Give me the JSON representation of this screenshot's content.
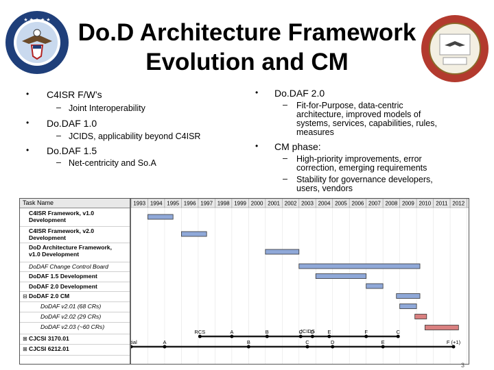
{
  "title": {
    "line1": "Do.D Architecture Framework",
    "line2": "Evolution and CM"
  },
  "left_column": {
    "items": [
      {
        "label": "C4ISR F/W’s",
        "sub": "Joint Interoperability"
      },
      {
        "label": "Do.DAF 1.0",
        "sub": "JCIDS, applicability beyond C4ISR"
      },
      {
        "label": "Do.DAF 1.5",
        "sub": "Net-centricity and So.A"
      }
    ]
  },
  "right_column": {
    "item1": {
      "label": "Do.DAF 2.0",
      "sub_lines": [
        "Fit-for-Purpose, data-centric",
        "architecture, improved models of",
        "systems, services, capabilities, rules,",
        "measures"
      ]
    },
    "item2": {
      "label": "CM phase:",
      "sub1_lines": [
        "High-priority improvements, error",
        "correction, emerging requirements"
      ],
      "sub2_lines": [
        "Stability for governance developers,",
        "users, vendors"
      ]
    }
  },
  "gantt": {
    "task_header": "Task Name",
    "years": [
      "1993",
      "1994",
      "1995",
      "1996",
      "1997",
      "1998",
      "1999",
      "2000",
      "2001",
      "2002",
      "2003",
      "2004",
      "2005",
      "2006",
      "2007",
      "2008",
      "2009",
      "2010",
      "2011",
      "2012",
      "20"
    ],
    "tasks": [
      {
        "line1": "C4ISR Framework, v1.0",
        "line2": "Development"
      },
      {
        "line1": "C4ISR Framework, v2.0",
        "line2": "Development"
      },
      {
        "line1": "DoD Architecture Framework,",
        "line2": "v1.0 Development"
      },
      {
        "line1": "DoDAF Change Control Board",
        "line2": ""
      },
      {
        "line1": "DoDAF 1.5 Development",
        "line2": ""
      },
      {
        "line1": "DoDAF 2.0 Development",
        "line2": ""
      },
      {
        "line1": "DoDAF 2.0 CM",
        "line2": ""
      },
      {
        "line1": "DoDAF v2.01 (68 CRs)",
        "line2": ""
      },
      {
        "line1": "DoDAF v2.02 (29 CRs)",
        "line2": ""
      },
      {
        "line1": "DoDAF v2.03 (~60 CRs)",
        "line2": ""
      },
      {
        "line1": "CJCSI 3170.01",
        "line2": ""
      },
      {
        "line1": "CJCSI 6212.01",
        "line2": ""
      }
    ],
    "toggles": [
      "⊟",
      "⊞",
      "⊞"
    ],
    "bars": [
      {
        "task": 0,
        "start": 1994.0,
        "end": 1995.5,
        "color": "#8fa8d8"
      },
      {
        "task": 1,
        "start": 1996.0,
        "end": 1997.5,
        "color": "#8fa8d8"
      },
      {
        "task": 2,
        "start": 2001.0,
        "end": 2003.0,
        "color": "#8fa8d8"
      },
      {
        "task": 3,
        "start": 2003.0,
        "end": 2010.2,
        "color": "#8fa8d8"
      },
      {
        "task": 4,
        "start": 2004.0,
        "end": 2007.0,
        "color": "#8fa8d8"
      },
      {
        "task": 5,
        "start": 2007.0,
        "end": 2008.0,
        "color": "#8fa8d8"
      },
      {
        "task": 6,
        "start": 2008.8,
        "end": 2010.2,
        "color": "#8fa8d8"
      },
      {
        "task": 7,
        "start": 2009.0,
        "end": 2010.0,
        "color": "#8fa8d8"
      },
      {
        "task": 8,
        "start": 2009.9,
        "end": 2010.6,
        "color": "#d98080"
      },
      {
        "task": 9,
        "start": 2010.5,
        "end": 2012.5,
        "color": "#d98080"
      }
    ],
    "cjcsi3170_milestones": [
      {
        "year": 1997.1,
        "label": "RCS"
      },
      {
        "year": 1999.0,
        "label": "A"
      },
      {
        "year": 2001.1,
        "label": "B"
      },
      {
        "year": 2003.1,
        "label": "C"
      },
      {
        "year": 2003.8,
        "label": "D"
      },
      {
        "year": 2004.8,
        "label": "E"
      },
      {
        "year": 2007.0,
        "label": "F"
      },
      {
        "year": 2008.9,
        "label": "C"
      }
    ],
    "jcids_label": "JCIDS",
    "jcids_year": 2003.5,
    "cjcsi6212_milestones": [
      {
        "year": 1993.0,
        "label": "Initial"
      },
      {
        "year": 1995.0,
        "label": "A"
      },
      {
        "year": 2000.0,
        "label": "B"
      },
      {
        "year": 2003.5,
        "label": "C"
      },
      {
        "year": 2005.0,
        "label": "D"
      },
      {
        "year": 2008.0,
        "label": "E"
      },
      {
        "year": 2012.2,
        "label": "F (+1)"
      }
    ],
    "year_start": 1993,
    "year_end": 2013.1,
    "colors": {
      "plan_bar": "#8fa8d8",
      "current_bar": "#d98080",
      "summary": "#1a1a1a"
    }
  },
  "page_number": "3"
}
